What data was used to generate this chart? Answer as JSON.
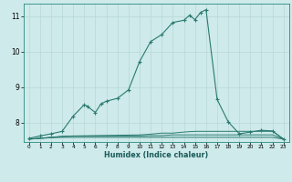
{
  "xlabel": "Humidex (Indice chaleur)",
  "bg_color": "#ceeaea",
  "grid_color": "#b8d8d8",
  "line_color": "#2a7a70",
  "xlim": [
    -0.5,
    23.5
  ],
  "ylim": [
    7.45,
    11.35
  ],
  "xticks": [
    0,
    1,
    2,
    3,
    4,
    5,
    6,
    7,
    8,
    9,
    10,
    11,
    12,
    13,
    14,
    15,
    16,
    17,
    18,
    19,
    20,
    21,
    22,
    23
  ],
  "yticks": [
    8,
    9,
    10,
    11
  ],
  "main_x": [
    0,
    1,
    2,
    3,
    4,
    5,
    5.3,
    6,
    6.5,
    7,
    8,
    9,
    10,
    11,
    12,
    13,
    14,
    14.5,
    15,
    15.5,
    16,
    17,
    18,
    19,
    20,
    21,
    22,
    23
  ],
  "main_y": [
    7.55,
    7.62,
    7.68,
    7.75,
    8.18,
    8.5,
    8.45,
    8.28,
    8.52,
    8.6,
    8.68,
    8.92,
    9.72,
    10.28,
    10.48,
    10.82,
    10.88,
    11.02,
    10.9,
    11.1,
    11.18,
    8.65,
    8.02,
    7.68,
    7.73,
    7.78,
    7.76,
    7.53
  ],
  "flat1_x": [
    0,
    2,
    3,
    4,
    5,
    6,
    7,
    8,
    9,
    10,
    11,
    12,
    13,
    14,
    15,
    16,
    17,
    18,
    19,
    20,
    21,
    22,
    23
  ],
  "flat1_y": [
    7.53,
    7.57,
    7.58,
    7.58,
    7.58,
    7.58,
    7.58,
    7.58,
    7.58,
    7.58,
    7.58,
    7.58,
    7.58,
    7.58,
    7.58,
    7.58,
    7.58,
    7.58,
    7.58,
    7.58,
    7.58,
    7.58,
    7.53
  ],
  "flat2_x": [
    0,
    2,
    3,
    4,
    5,
    6,
    7,
    8,
    9,
    10,
    11,
    12,
    13,
    14,
    15,
    16,
    17,
    18,
    19,
    20,
    21,
    22,
    23
  ],
  "flat2_y": [
    7.53,
    7.58,
    7.6,
    7.62,
    7.62,
    7.62,
    7.62,
    7.62,
    7.62,
    7.62,
    7.63,
    7.63,
    7.65,
    7.65,
    7.65,
    7.65,
    7.65,
    7.65,
    7.65,
    7.65,
    7.65,
    7.65,
    7.53
  ],
  "flat3_x": [
    0,
    2,
    3,
    10,
    11,
    12,
    13,
    14,
    15,
    16,
    17,
    18,
    19,
    20,
    21,
    22,
    23
  ],
  "flat3_y": [
    7.53,
    7.58,
    7.61,
    7.65,
    7.67,
    7.7,
    7.7,
    7.73,
    7.75,
    7.75,
    7.75,
    7.75,
    7.75,
    7.75,
    7.75,
    7.75,
    7.53
  ]
}
